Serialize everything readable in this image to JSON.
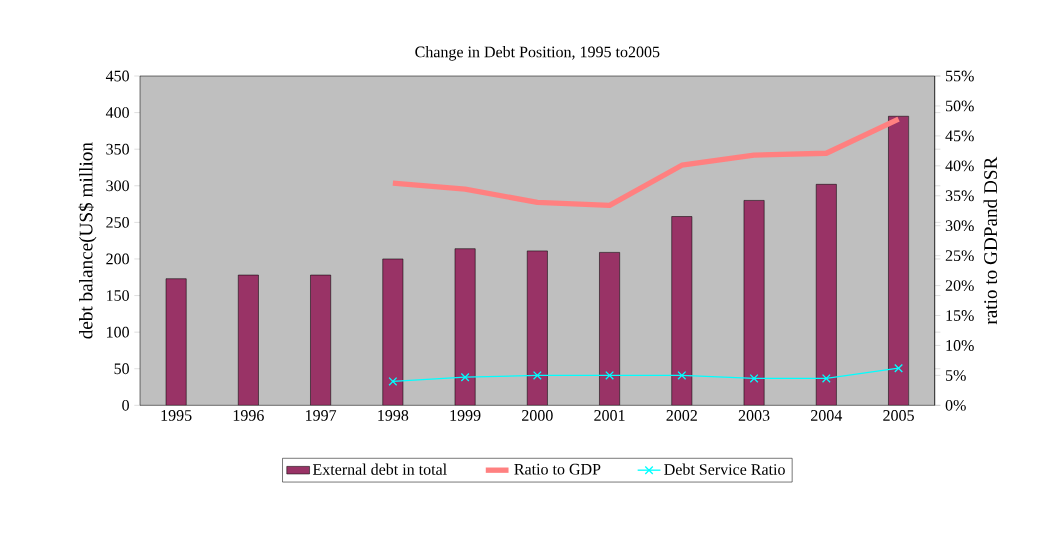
{
  "chart_data": {
    "type": "bar",
    "title": "Change in Debt Position, 1995 to2005",
    "ylabel": "debt balance(US$ million",
    "y2label": "ratio to GDPand DSR",
    "categories": [
      "1995",
      "1996",
      "1997",
      "1998",
      "1999",
      "2000",
      "2001",
      "2002",
      "2003",
      "2004",
      "2005"
    ],
    "series": [
      {
        "name": "External debt in total",
        "color": "#993366",
        "values": [
          173,
          178,
          178,
          200,
          214,
          211,
          209,
          258,
          280,
          302,
          395
        ]
      },
      {
        "name": "Ratio to GDP",
        "type": "line",
        "axis": "y2",
        "color": "#ff8080",
        "marker": "none",
        "values": [
          null,
          null,
          null,
          37.1,
          36.1,
          33.9,
          33.4,
          40.1,
          41.8,
          42.1,
          47.8
        ]
      },
      {
        "name": "Debt Service Ratio",
        "type": "line",
        "axis": "y2",
        "color": "#00ffff",
        "marker": "cross",
        "values": [
          null,
          null,
          null,
          4.0,
          4.7,
          5.0,
          5.0,
          5.0,
          4.5,
          4.5,
          6.2
        ]
      }
    ],
    "ylim": [
      0,
      450
    ],
    "yticks": [
      0,
      50,
      100,
      150,
      200,
      250,
      300,
      350,
      400,
      450
    ],
    "y2lim": [
      0,
      55
    ],
    "y2ticks": [
      {
        "value": 0,
        "label": "0%"
      },
      {
        "value": 5,
        "label": "5%"
      },
      {
        "value": 10,
        "label": "10%"
      },
      {
        "value": 15,
        "label": "15%"
      },
      {
        "value": 20,
        "label": "20%"
      },
      {
        "value": 25,
        "label": "25%"
      },
      {
        "value": 30,
        "label": "30%"
      },
      {
        "value": 35,
        "label": "35%"
      },
      {
        "value": 40,
        "label": "40%"
      },
      {
        "value": 45,
        "label": "45%"
      },
      {
        "value": 50,
        "label": "50%"
      },
      {
        "value": 55,
        "label": "55%"
      }
    ],
    "legend": "bottom",
    "grid": false
  }
}
